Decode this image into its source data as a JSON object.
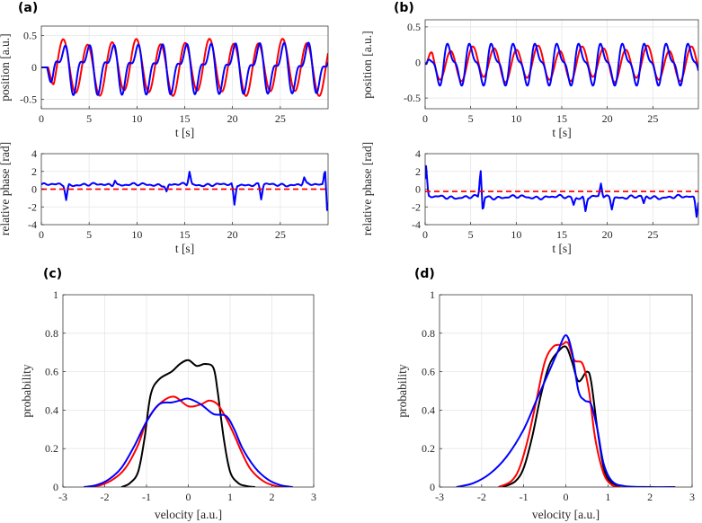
{
  "chart_data": [
    {
      "panel": "(a)",
      "type": "line",
      "xlabel": "t [s]",
      "ylabel": "position [a.u.]",
      "xlim": [
        0,
        30
      ],
      "ylim": [
        -0.65,
        0.65
      ],
      "xticks": [
        0,
        5,
        10,
        15,
        20,
        25
      ],
      "yticks": [
        -0.5,
        0,
        0.5
      ],
      "xtick_labels": [
        "0",
        "5",
        "10",
        "15",
        "20",
        "25"
      ],
      "ytick_labels": [
        "-0.5",
        "0",
        "0.5"
      ],
      "grid": true,
      "series": [
        {
          "color": "#ff0000",
          "generator": {
            "kind": "osc",
            "amps": [
              0.4,
              0.05
            ],
            "periods": [
              2.55,
              7.9
            ],
            "phases": [
              2.2,
              0.3
            ],
            "offset": 0,
            "start": 0.7,
            "step": 0.05
          }
        },
        {
          "color": "#0000ff",
          "generator": {
            "kind": "osc",
            "amps": [
              0.3,
              0.16
            ],
            "periods": [
              2.55,
              1.27
            ],
            "phases": [
              2.4,
              1.0
            ],
            "offset": 0,
            "start": 0.6,
            "step": 0.05
          }
        }
      ]
    },
    {
      "panel": "",
      "type": "line",
      "xlabel": "t [s]",
      "ylabel": "relative phase [rad]",
      "xlim": [
        0,
        30
      ],
      "ylim": [
        -4,
        4
      ],
      "xticks": [
        0,
        5,
        10,
        15,
        20,
        25
      ],
      "yticks": [
        -4,
        -2,
        0,
        2,
        4
      ],
      "xtick_labels": [
        "0",
        "5",
        "10",
        "15",
        "20",
        "25"
      ],
      "ytick_labels": [
        "-4",
        "-2",
        "0",
        "2",
        "4"
      ],
      "grid": true,
      "series": [
        {
          "color": "#0000ff",
          "generator": {
            "kind": "phase",
            "base": 0.5,
            "noise": 0.15,
            "step": 0.1,
            "spikes": [
              [
                2.6,
                -1.2
              ],
              [
                7.7,
                1.1
              ],
              [
                13.1,
                -0.3
              ],
              [
                15.5,
                2.0
              ],
              [
                20.2,
                -1.8
              ],
              [
                23.0,
                -1.1
              ],
              [
                27.5,
                1.3
              ],
              [
                29.7,
                2.7
              ],
              [
                29.9,
                -2.6
              ]
            ]
          }
        },
        {
          "color": "#ff0000",
          "dashed": true,
          "constant": 0
        }
      ]
    },
    {
      "panel": "(b)",
      "type": "line",
      "xlabel": "t [s]",
      "ylabel": "position [a.u.]",
      "xlim": [
        0,
        30
      ],
      "ylim": [
        -0.65,
        0.6
      ],
      "xticks": [
        0,
        5,
        10,
        15,
        20,
        25
      ],
      "yticks": [
        -0.5,
        0,
        0.5
      ],
      "xtick_labels": [
        "0",
        "5",
        "10",
        "15",
        "20",
        "25"
      ],
      "ytick_labels": [
        "-0.5",
        "0",
        "0.5"
      ],
      "grid": true,
      "series": [
        {
          "color": "#ff0000",
          "generator": {
            "kind": "osc",
            "amps": [
              0.22,
              0.04
            ],
            "periods": [
              2.4,
              6.0
            ],
            "phases": [
              0.5,
              1.5
            ],
            "offset": -0.02,
            "start": 0.2,
            "step": 0.05
          }
        },
        {
          "color": "#0000ff",
          "generator": {
            "kind": "osc",
            "amps": [
              0.24,
              0.1
            ],
            "periods": [
              2.4,
              1.2
            ],
            "phases": [
              0.9,
              2.0
            ],
            "offset": -0.02,
            "start": 0.2,
            "step": 0.05
          }
        }
      ]
    },
    {
      "panel": "",
      "type": "line",
      "xlabel": "t [s]",
      "ylabel": "relative phase [rad]",
      "xlim": [
        0,
        30
      ],
      "ylim": [
        -4,
        4
      ],
      "xticks": [
        0,
        5,
        10,
        15,
        20,
        25
      ],
      "yticks": [
        -4,
        -2,
        0,
        2,
        4
      ],
      "xtick_labels": [
        "0",
        "5",
        "10",
        "15",
        "20",
        "25"
      ],
      "ytick_labels": [
        "-4",
        "-2",
        "0",
        "2",
        "4"
      ],
      "grid": true,
      "series": [
        {
          "color": "#0000ff",
          "generator": {
            "kind": "phase",
            "base": -0.9,
            "noise": 0.2,
            "step": 0.1,
            "spikes": [
              [
                0.1,
                2.5
              ],
              [
                6.1,
                2.4
              ],
              [
                6.3,
                -2.9
              ],
              [
                16.3,
                -1.7
              ],
              [
                17.6,
                -2.5
              ],
              [
                19.3,
                0.6
              ],
              [
                20.5,
                -2.1
              ],
              [
                24.0,
                -1.7
              ],
              [
                29.8,
                -2.9
              ]
            ]
          }
        },
        {
          "color": "#ff0000",
          "dashed": true,
          "constant": -0.25
        }
      ]
    },
    {
      "panel": "(c)",
      "type": "line",
      "xlabel": "velocity [a.u.]",
      "ylabel": "probability",
      "xlim": [
        -3,
        3
      ],
      "ylim": [
        0,
        1
      ],
      "xticks": [
        -3,
        -2,
        -1,
        0,
        1,
        2,
        3
      ],
      "yticks": [
        0,
        0.2,
        0.4,
        0.6,
        0.8,
        1
      ],
      "xtick_labels": [
        "-3",
        "-2",
        "-1",
        "0",
        "1",
        "2",
        "3"
      ],
      "ytick_labels": [
        "0",
        "0.2",
        "0.4",
        "0.6",
        "0.8",
        "1"
      ],
      "grid": true,
      "series": [
        {
          "color": "#000000",
          "points": [
            [
              -1.6,
              0
            ],
            [
              -1.4,
              0.02
            ],
            [
              -1.2,
              0.08
            ],
            [
              -1.05,
              0.25
            ],
            [
              -0.9,
              0.48
            ],
            [
              -0.7,
              0.56
            ],
            [
              -0.4,
              0.6
            ],
            [
              -0.2,
              0.64
            ],
            [
              0,
              0.66
            ],
            [
              0.2,
              0.63
            ],
            [
              0.4,
              0.64
            ],
            [
              0.6,
              0.62
            ],
            [
              0.7,
              0.5
            ],
            [
              0.85,
              0.25
            ],
            [
              1.0,
              0.08
            ],
            [
              1.2,
              0.02
            ],
            [
              1.4,
              0.005
            ],
            [
              1.6,
              0
            ]
          ]
        },
        {
          "color": "#ff0000",
          "points": [
            [
              -2.4,
              0
            ],
            [
              -2.1,
              0.01
            ],
            [
              -1.8,
              0.04
            ],
            [
              -1.5,
              0.1
            ],
            [
              -1.2,
              0.22
            ],
            [
              -1.0,
              0.34
            ],
            [
              -0.7,
              0.43
            ],
            [
              -0.35,
              0.47
            ],
            [
              0,
              0.42
            ],
            [
              0.3,
              0.43
            ],
            [
              0.5,
              0.45
            ],
            [
              0.7,
              0.43
            ],
            [
              0.9,
              0.36
            ],
            [
              1.1,
              0.27
            ],
            [
              1.3,
              0.17
            ],
            [
              1.5,
              0.09
            ],
            [
              1.8,
              0.03
            ],
            [
              2.1,
              0.005
            ],
            [
              2.4,
              0
            ]
          ]
        },
        {
          "color": "#0000ff",
          "points": [
            [
              -2.5,
              0
            ],
            [
              -2.2,
              0.01
            ],
            [
              -1.9,
              0.04
            ],
            [
              -1.6,
              0.1
            ],
            [
              -1.3,
              0.21
            ],
            [
              -1.0,
              0.34
            ],
            [
              -0.7,
              0.43
            ],
            [
              -0.4,
              0.44
            ],
            [
              -0.2,
              0.45
            ],
            [
              0,
              0.46
            ],
            [
              0.3,
              0.43
            ],
            [
              0.6,
              0.38
            ],
            [
              0.9,
              0.37
            ],
            [
              1.1,
              0.3
            ],
            [
              1.3,
              0.2
            ],
            [
              1.6,
              0.1
            ],
            [
              1.9,
              0.04
            ],
            [
              2.2,
              0.01
            ],
            [
              2.5,
              0
            ]
          ]
        }
      ]
    },
    {
      "panel": "(d)",
      "type": "line",
      "xlabel": "velocity [a.u.]",
      "ylabel": "probability",
      "xlim": [
        -3,
        3
      ],
      "ylim": [
        0,
        1
      ],
      "xticks": [
        -3,
        -2,
        -1,
        0,
        1,
        2,
        3
      ],
      "yticks": [
        0,
        0.2,
        0.4,
        0.6,
        0.8,
        1
      ],
      "xtick_labels": [
        "-3",
        "-2",
        "-1",
        "0",
        "1",
        "2",
        "3"
      ],
      "ytick_labels": [
        "0",
        "0.2",
        "0.4",
        "0.6",
        "0.8",
        "1"
      ],
      "grid": true,
      "series": [
        {
          "color": "#000000",
          "points": [
            [
              -1.5,
              0
            ],
            [
              -1.2,
              0.03
            ],
            [
              -1.0,
              0.1
            ],
            [
              -0.8,
              0.26
            ],
            [
              -0.6,
              0.47
            ],
            [
              -0.4,
              0.63
            ],
            [
              -0.2,
              0.7
            ],
            [
              0,
              0.73
            ],
            [
              0.15,
              0.65
            ],
            [
              0.3,
              0.55
            ],
            [
              0.5,
              0.6
            ],
            [
              0.6,
              0.55
            ],
            [
              0.75,
              0.3
            ],
            [
              0.9,
              0.1
            ],
            [
              1.05,
              0.03
            ],
            [
              1.3,
              0
            ]
          ]
        },
        {
          "color": "#ff0000",
          "points": [
            [
              -1.6,
              0
            ],
            [
              -1.3,
              0.03
            ],
            [
              -1.1,
              0.1
            ],
            [
              -0.9,
              0.25
            ],
            [
              -0.7,
              0.45
            ],
            [
              -0.5,
              0.65
            ],
            [
              -0.3,
              0.73
            ],
            [
              -0.1,
              0.74
            ],
            [
              0.05,
              0.75
            ],
            [
              0.2,
              0.66
            ],
            [
              0.4,
              0.64
            ],
            [
              0.55,
              0.5
            ],
            [
              0.7,
              0.25
            ],
            [
              0.9,
              0.07
            ],
            [
              1.1,
              0.01
            ],
            [
              1.3,
              0
            ]
          ]
        },
        {
          "color": "#0000ff",
          "points": [
            [
              -2.6,
              0
            ],
            [
              -2.2,
              0.02
            ],
            [
              -1.8,
              0.07
            ],
            [
              -1.4,
              0.16
            ],
            [
              -1.0,
              0.3
            ],
            [
              -0.7,
              0.45
            ],
            [
              -0.4,
              0.6
            ],
            [
              -0.2,
              0.7
            ],
            [
              0,
              0.79
            ],
            [
              0.15,
              0.7
            ],
            [
              0.3,
              0.5
            ],
            [
              0.45,
              0.45
            ],
            [
              0.6,
              0.43
            ],
            [
              0.75,
              0.3
            ],
            [
              0.9,
              0.12
            ],
            [
              1.1,
              0.03
            ],
            [
              1.4,
              0.005
            ],
            [
              2.0,
              0
            ],
            [
              2.6,
              0
            ]
          ]
        }
      ]
    }
  ]
}
